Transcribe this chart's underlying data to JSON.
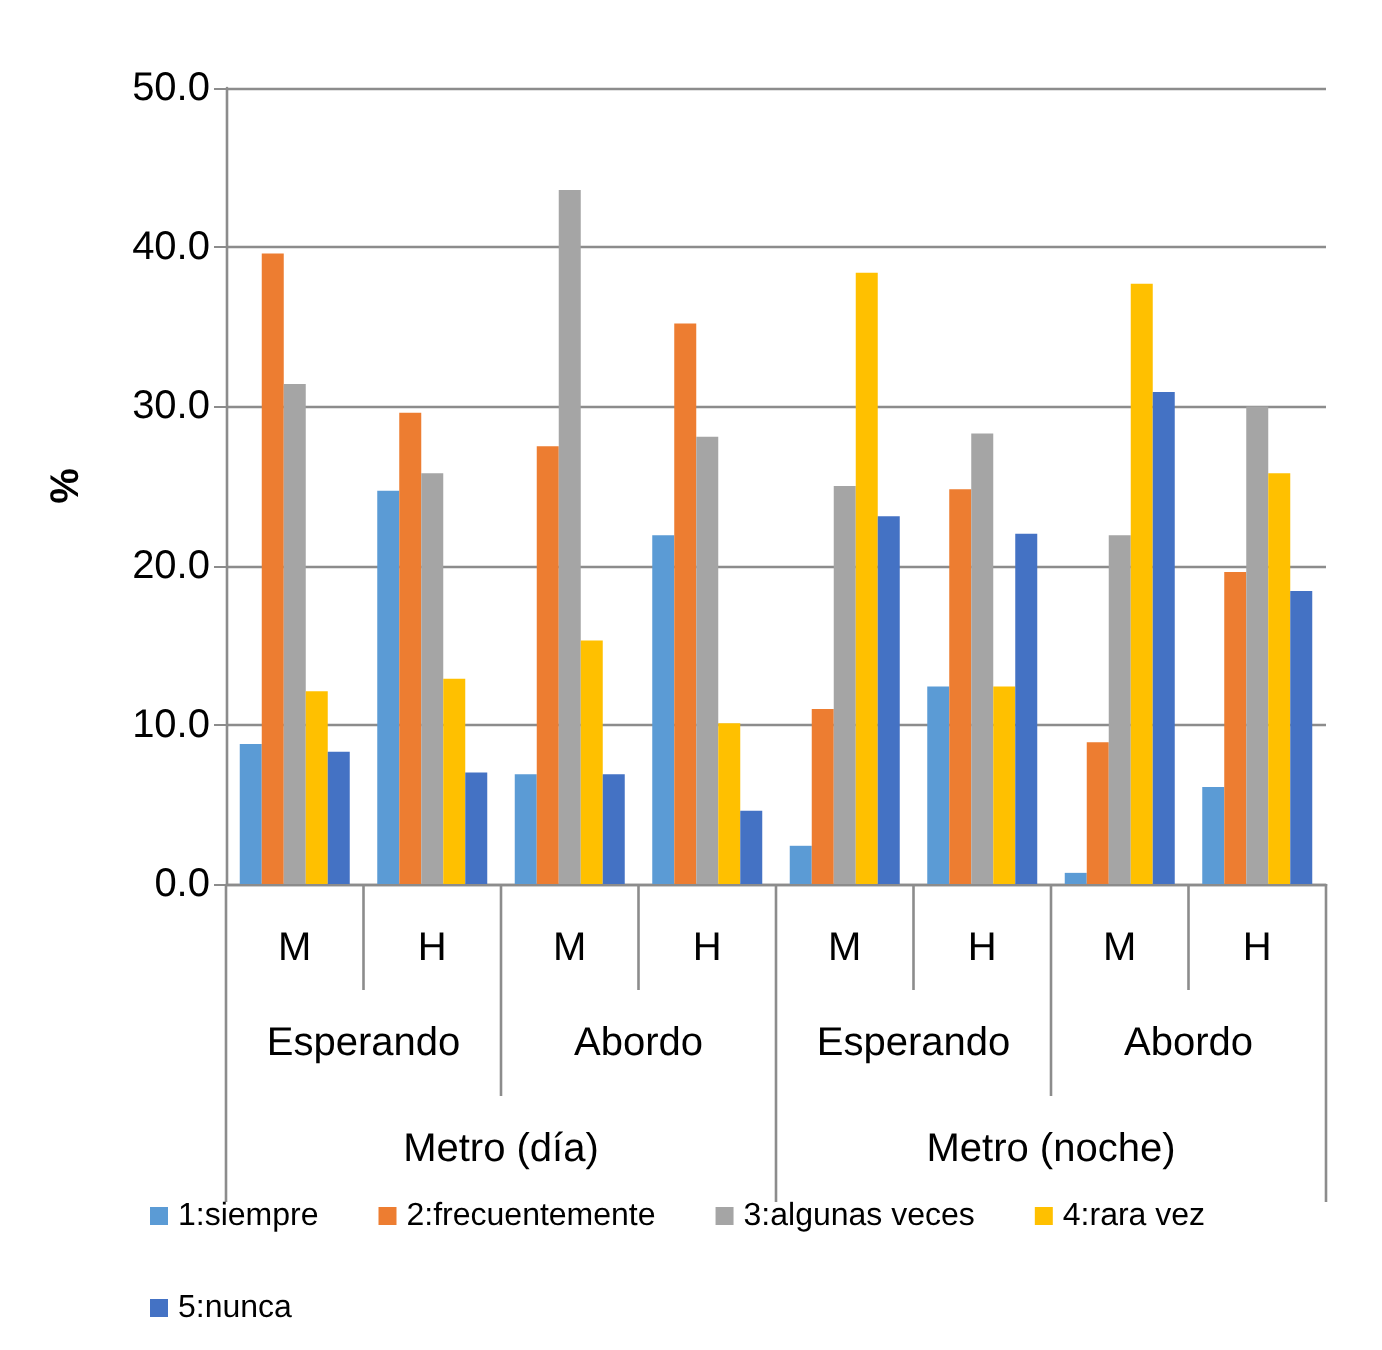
{
  "chart_data": {
    "type": "bar",
    "ylabel": "%",
    "categories": [
      "M",
      "H",
      "M",
      "H",
      "M",
      "H",
      "M",
      "H"
    ],
    "annotations": [
      "Esperando",
      "Abordo",
      "Esperando",
      "Abordo",
      "Metro (día)",
      "Metro (noche)"
    ],
    "series": [
      {
        "name": "1:siempre",
        "color": "#5b9bd5",
        "values": [
          8.8,
          24.7,
          6.9,
          21.9,
          2.4,
          12.4,
          0.7,
          6.1
        ]
      },
      {
        "name": "2:frecuentemente",
        "color": "#ed7d31",
        "values": [
          39.6,
          29.6,
          27.5,
          35.2,
          11.0,
          24.8,
          8.9,
          19.6
        ]
      },
      {
        "name": "3:algunas veces",
        "color": "#a5a5a5",
        "values": [
          31.4,
          25.8,
          43.6,
          28.1,
          25.0,
          28.3,
          21.9,
          30.0
        ]
      },
      {
        "name": "4:rara vez",
        "color": "#ffc000",
        "values": [
          12.1,
          12.9,
          15.3,
          10.1,
          38.4,
          12.4,
          37.7,
          25.8
        ]
      },
      {
        "name": "5:nunca",
        "color": "#4472c4",
        "values": [
          8.3,
          7.0,
          6.9,
          4.6,
          23.1,
          22.0,
          30.9,
          18.4
        ]
      }
    ],
    "ylim": [
      0,
      50
    ],
    "yticks": [
      {
        "value": 0,
        "label": "0.0"
      },
      {
        "value": 10,
        "label": "10.0"
      },
      {
        "value": 20,
        "label": "20.0"
      },
      {
        "value": 30,
        "label": "30.0"
      },
      {
        "value": 40,
        "label": "40.0"
      },
      {
        "value": 50,
        "label": "50.0"
      }
    ],
    "grid": "y",
    "legend": "bottom"
  }
}
